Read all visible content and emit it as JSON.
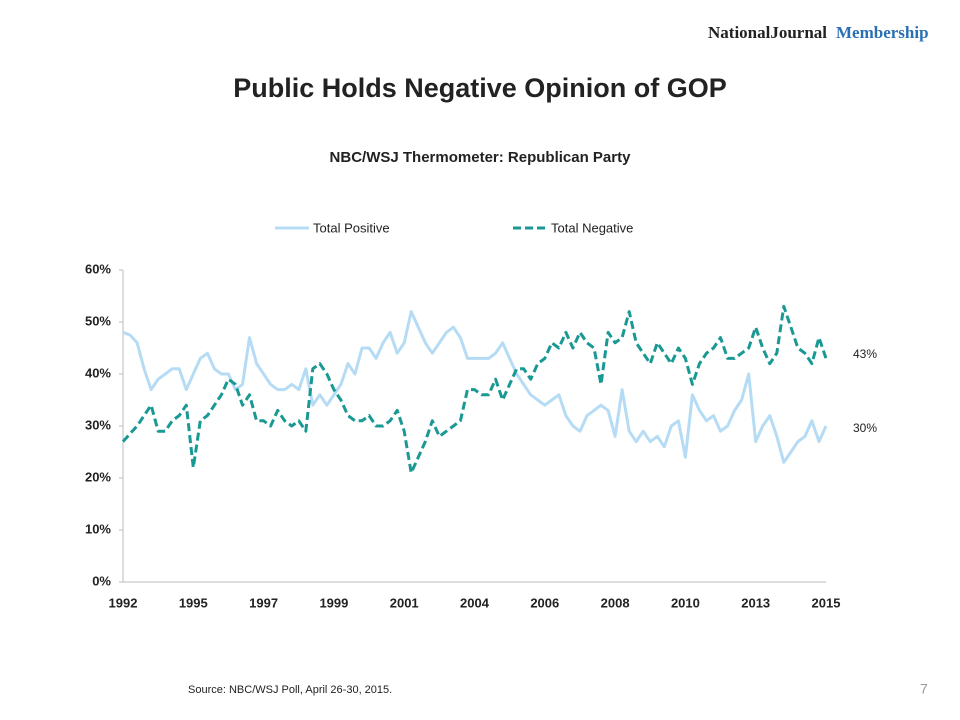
{
  "header": {
    "logo_dark": "NationalJournal",
    "logo_blue": "Membership"
  },
  "footer": {
    "source": "Source: NBC/WSJ Poll, April 26-30, 2015.",
    "page": "7"
  },
  "chart_data": {
    "type": "line",
    "title": "Public Holds Negative Opinion of GOP",
    "subtitle": "NBC/WSJ Thermometer: Republican Party",
    "end_labels": [
      "43%",
      "30%"
    ],
    "categories": [
      "1992",
      null,
      null,
      null,
      null,
      null,
      null,
      null,
      null,
      null,
      "1995",
      null,
      null,
      null,
      null,
      null,
      null,
      null,
      null,
      null,
      "1997",
      null,
      null,
      null,
      null,
      null,
      null,
      null,
      null,
      null,
      "1999",
      null,
      null,
      null,
      null,
      null,
      null,
      null,
      null,
      null,
      "2001",
      null,
      null,
      null,
      null,
      null,
      null,
      null,
      null,
      null,
      "2004",
      null,
      null,
      null,
      null,
      null,
      null,
      null,
      null,
      null,
      "2006",
      null,
      null,
      null,
      null,
      null,
      null,
      null,
      null,
      null,
      "2008",
      null,
      null,
      null,
      null,
      null,
      null,
      null,
      null,
      null,
      "2010",
      null,
      null,
      null,
      null,
      null,
      null,
      null,
      null,
      null,
      "2013",
      null,
      null,
      null,
      null,
      null,
      null,
      null,
      null,
      null,
      "2015"
    ],
    "series": [
      {
        "name": "Total Positive",
        "color": "#b5dcf4",
        "dash": false,
        "values": [
          48,
          47.5,
          46,
          41,
          37,
          39,
          40,
          41,
          41,
          37,
          40,
          43,
          44,
          41,
          40,
          40,
          37,
          38,
          47,
          42,
          40,
          38,
          37,
          37,
          38,
          37,
          41,
          34,
          36,
          34,
          36,
          38,
          42,
          40,
          45,
          45,
          43,
          46,
          48,
          44,
          46,
          52,
          49,
          46,
          44,
          46,
          48,
          49,
          47,
          43,
          43,
          43,
          43,
          44,
          46,
          43,
          40,
          38,
          36,
          35,
          34,
          35,
          36,
          32,
          30,
          29,
          32,
          33,
          34,
          33,
          28,
          37,
          29,
          27,
          29,
          27,
          28,
          26,
          30,
          31,
          24,
          36,
          33,
          31,
          32,
          29,
          30,
          33,
          35,
          40,
          27,
          30,
          32,
          28,
          23,
          25,
          27,
          28,
          31,
          27,
          30
        ]
      },
      {
        "name": "Total Negative",
        "color": "#1a9994",
        "dash": true,
        "values": [
          27,
          28.5,
          30,
          32,
          34,
          29,
          29,
          31,
          32,
          34,
          22,
          31,
          32,
          34,
          36,
          39,
          38,
          34,
          36,
          31,
          31,
          30,
          33,
          31,
          30,
          31,
          29,
          41,
          42,
          40,
          37,
          35,
          32,
          31,
          31,
          32,
          30,
          30,
          31,
          33,
          29,
          21,
          24,
          27,
          31,
          28,
          29,
          30,
          31,
          37,
          37,
          36,
          36,
          39,
          35,
          38,
          41,
          41,
          39,
          42,
          43,
          46,
          45,
          48,
          45,
          48,
          46,
          45,
          38,
          48,
          46,
          47,
          52,
          46,
          44,
          42,
          46,
          44,
          42,
          45,
          43,
          38,
          42,
          44,
          45,
          47,
          43,
          43,
          44,
          45,
          49,
          45,
          42,
          44,
          53,
          49,
          45,
          44,
          42,
          47,
          43
        ]
      }
    ],
    "ylim": [
      0,
      60
    ],
    "yticks": [
      {
        "value": 0,
        "label": "0%"
      },
      {
        "value": 10,
        "label": "10%"
      },
      {
        "value": 20,
        "label": "20%"
      },
      {
        "value": 30,
        "label": "30%"
      },
      {
        "value": 40,
        "label": "40%"
      },
      {
        "value": 50,
        "label": "50%"
      },
      {
        "value": 60,
        "label": "60%"
      }
    ],
    "grid": false,
    "legend": "top"
  }
}
